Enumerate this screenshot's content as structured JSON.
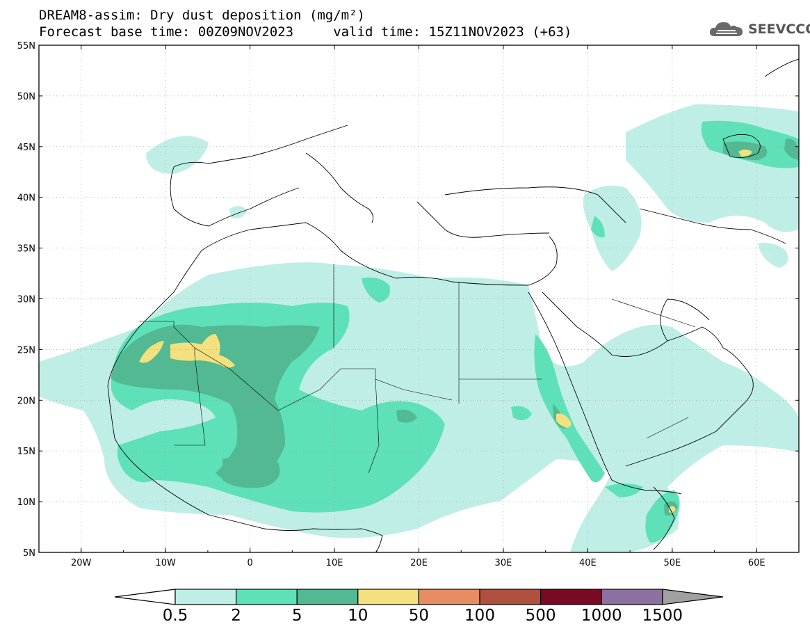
{
  "title": {
    "line1": "DREAM8-assim: Dry dust deposition (mg/m²)",
    "line2": "Forecast base time: 00Z09NOV2023     valid time: 15Z11NOV2023 (+63)"
  },
  "logo": {
    "text": "SEEVCCC",
    "icon": "cloud-icon"
  },
  "map": {
    "lat_range": [
      5,
      55
    ],
    "lon_range": [
      -25,
      65
    ],
    "lat_labels": [
      "55N",
      "50N",
      "45N",
      "40N",
      "35N",
      "30N",
      "25N",
      "20N",
      "15N",
      "10N",
      "5N"
    ],
    "lon_labels": [
      "20W",
      "10W",
      "0",
      "10E",
      "20E",
      "30E",
      "40E",
      "50E",
      "60E"
    ]
  },
  "colorbar": {
    "labels": [
      "0.5",
      "2",
      "5",
      "10",
      "50",
      "100",
      "500",
      "1000",
      "1500"
    ],
    "colors": [
      "#bfeee6",
      "#5ee0b8",
      "#52b993",
      "#f3e07e",
      "#e88c64",
      "#b05040",
      "#7a0a24",
      "#8c70a0",
      "#a0a0a0"
    ]
  }
}
